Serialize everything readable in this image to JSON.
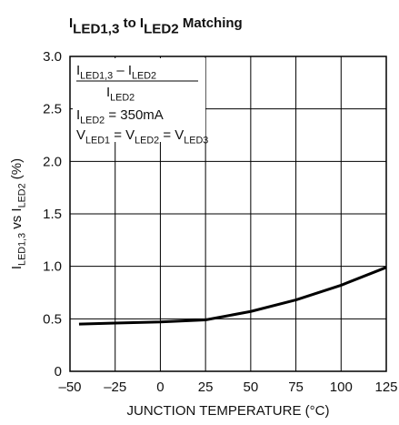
{
  "chart_data": {
    "type": "line",
    "title": [
      {
        "text": "I"
      },
      {
        "text": "LED1,3",
        "sub": true
      },
      {
        "text": " to I"
      },
      {
        "text": "LED2",
        "sub": true
      },
      {
        "text": " Matching"
      }
    ],
    "xlabel": "JUNCTION TEMPERATURE (°C)",
    "ylabel": [
      {
        "text": "I"
      },
      {
        "text": "LED1,3",
        "sub": true
      },
      {
        "text": " vs I"
      },
      {
        "text": "LED2",
        "sub": true
      },
      {
        "text": " (%)"
      }
    ],
    "annotations": [
      [
        {
          "text": "I"
        },
        {
          "text": "LED1,3",
          "sub": true
        },
        {
          "text": " – I"
        },
        {
          "text": "LED2",
          "sub": true
        }
      ],
      [
        {
          "text": "I"
        },
        {
          "text": "LED2",
          "sub": true
        }
      ],
      [
        {
          "text": "I"
        },
        {
          "text": "LED2",
          "sub": true
        },
        {
          "text": " = 350mA"
        }
      ],
      [
        {
          "text": "V"
        },
        {
          "text": "LED1",
          "sub": true
        },
        {
          "text": " = V"
        },
        {
          "text": "LED2",
          "sub": true
        },
        {
          "text": " = V"
        },
        {
          "text": "LED3",
          "sub": true
        }
      ]
    ],
    "x": [
      -45,
      -25,
      0,
      25,
      50,
      75,
      100,
      125
    ],
    "series": [
      {
        "name": null,
        "color": "#000000",
        "values": [
          0.45,
          0.46,
          0.47,
          0.49,
          0.57,
          0.68,
          0.82,
          0.99
        ]
      }
    ],
    "xlim": [
      -50,
      125
    ],
    "xticks": [
      {
        "value": -50,
        "label": "–50"
      },
      {
        "value": -25,
        "label": "–25"
      },
      0,
      25,
      50,
      75,
      100,
      125
    ],
    "ylim": [
      0,
      3
    ],
    "yticks": [
      0,
      {
        "value": 0.5,
        "label": "0.5"
      },
      {
        "value": 1,
        "label": "1.0"
      },
      {
        "value": 1.5,
        "label": "1.5"
      },
      {
        "value": 2,
        "label": "2.0"
      },
      {
        "value": 2.5,
        "label": "2.5"
      },
      {
        "value": 3,
        "label": "3.0"
      }
    ],
    "grid": true
  }
}
